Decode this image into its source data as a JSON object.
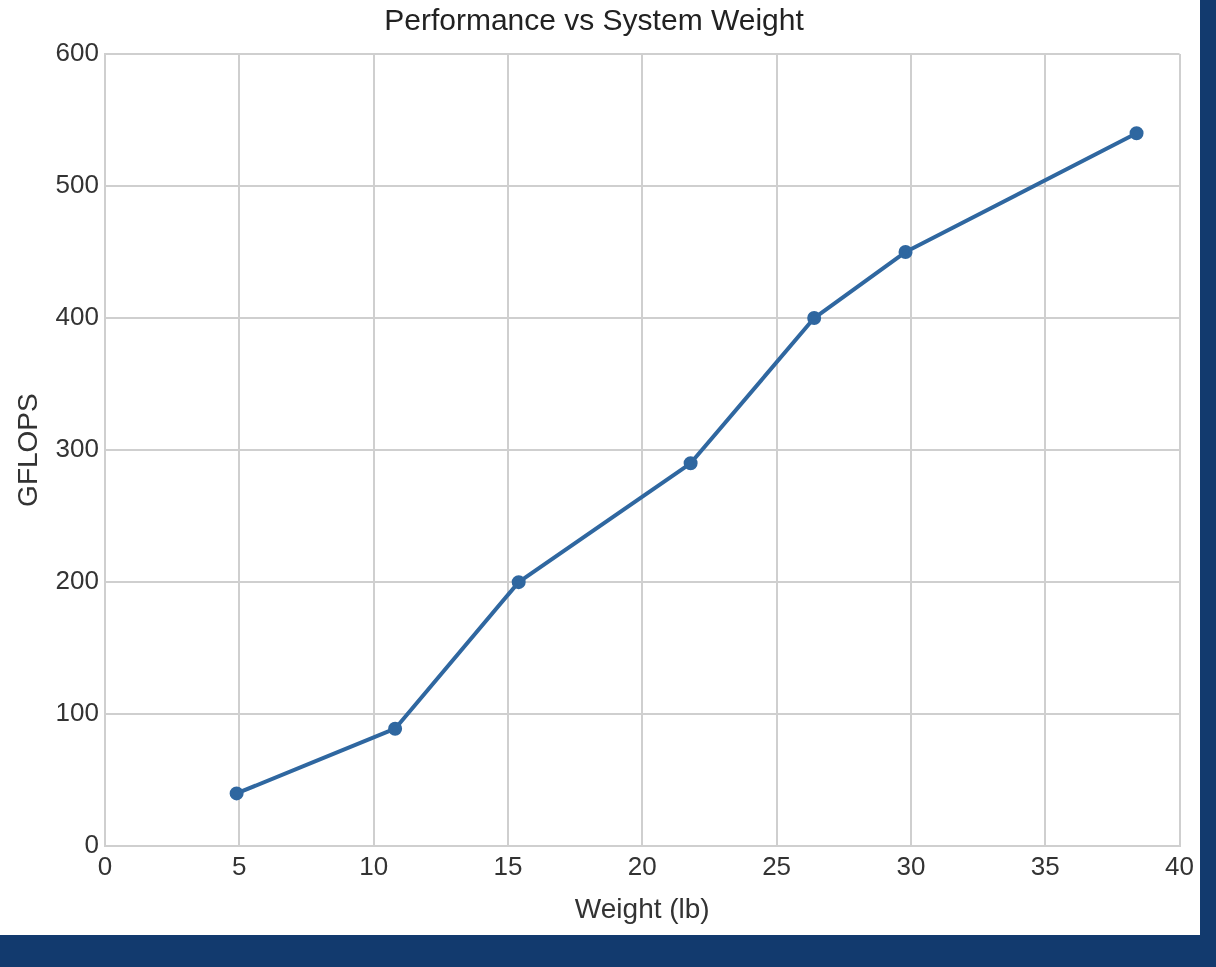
{
  "chart_data": {
    "type": "line",
    "title": "Performance vs System Weight",
    "xlabel": "Weight (lb)",
    "ylabel": "GFLOPS",
    "x": [
      4.9,
      10.8,
      15.4,
      21.8,
      26.4,
      29.8,
      38.4
    ],
    "series": [
      {
        "color": "#2f67a0",
        "values": [
          40,
          89,
          200,
          290,
          400,
          450,
          540
        ]
      }
    ],
    "xlim": [
      0,
      40
    ],
    "xticks": [
      0,
      5,
      10,
      15,
      20,
      25,
      30,
      35,
      40
    ],
    "ylim": [
      0,
      600
    ],
    "yticks": [
      0,
      100,
      200,
      300,
      400,
      500,
      600
    ],
    "grid": true,
    "legend": false,
    "marker": "circle",
    "line_style": "solid"
  }
}
